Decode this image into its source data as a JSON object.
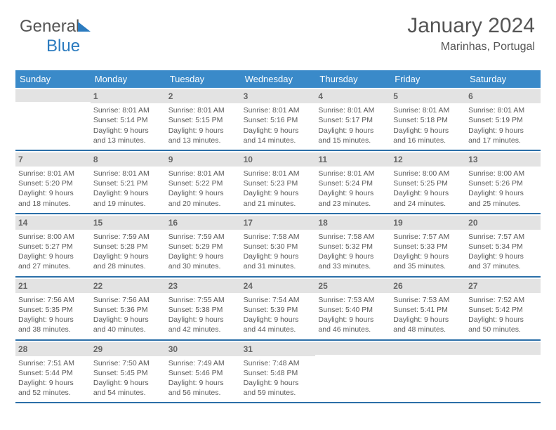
{
  "logo": {
    "part1": "General",
    "part2": "Blue"
  },
  "title": "January 2024",
  "location": "Marinhas, Portugal",
  "colors": {
    "header_bg": "#3a8ac9",
    "header_text": "#ffffff",
    "daynum_bg": "#e3e3e3",
    "week_divider": "#2b6fa8",
    "body_text": "#5a5a5a"
  },
  "weekdays": [
    "Sunday",
    "Monday",
    "Tuesday",
    "Wednesday",
    "Thursday",
    "Friday",
    "Saturday"
  ],
  "weeks": [
    [
      {
        "day": "",
        "lines": []
      },
      {
        "day": "1",
        "lines": [
          "Sunrise: 8:01 AM",
          "Sunset: 5:14 PM",
          "Daylight: 9 hours",
          "and 13 minutes."
        ]
      },
      {
        "day": "2",
        "lines": [
          "Sunrise: 8:01 AM",
          "Sunset: 5:15 PM",
          "Daylight: 9 hours",
          "and 13 minutes."
        ]
      },
      {
        "day": "3",
        "lines": [
          "Sunrise: 8:01 AM",
          "Sunset: 5:16 PM",
          "Daylight: 9 hours",
          "and 14 minutes."
        ]
      },
      {
        "day": "4",
        "lines": [
          "Sunrise: 8:01 AM",
          "Sunset: 5:17 PM",
          "Daylight: 9 hours",
          "and 15 minutes."
        ]
      },
      {
        "day": "5",
        "lines": [
          "Sunrise: 8:01 AM",
          "Sunset: 5:18 PM",
          "Daylight: 9 hours",
          "and 16 minutes."
        ]
      },
      {
        "day": "6",
        "lines": [
          "Sunrise: 8:01 AM",
          "Sunset: 5:19 PM",
          "Daylight: 9 hours",
          "and 17 minutes."
        ]
      }
    ],
    [
      {
        "day": "7",
        "lines": [
          "Sunrise: 8:01 AM",
          "Sunset: 5:20 PM",
          "Daylight: 9 hours",
          "and 18 minutes."
        ]
      },
      {
        "day": "8",
        "lines": [
          "Sunrise: 8:01 AM",
          "Sunset: 5:21 PM",
          "Daylight: 9 hours",
          "and 19 minutes."
        ]
      },
      {
        "day": "9",
        "lines": [
          "Sunrise: 8:01 AM",
          "Sunset: 5:22 PM",
          "Daylight: 9 hours",
          "and 20 minutes."
        ]
      },
      {
        "day": "10",
        "lines": [
          "Sunrise: 8:01 AM",
          "Sunset: 5:23 PM",
          "Daylight: 9 hours",
          "and 21 minutes."
        ]
      },
      {
        "day": "11",
        "lines": [
          "Sunrise: 8:01 AM",
          "Sunset: 5:24 PM",
          "Daylight: 9 hours",
          "and 23 minutes."
        ]
      },
      {
        "day": "12",
        "lines": [
          "Sunrise: 8:00 AM",
          "Sunset: 5:25 PM",
          "Daylight: 9 hours",
          "and 24 minutes."
        ]
      },
      {
        "day": "13",
        "lines": [
          "Sunrise: 8:00 AM",
          "Sunset: 5:26 PM",
          "Daylight: 9 hours",
          "and 25 minutes."
        ]
      }
    ],
    [
      {
        "day": "14",
        "lines": [
          "Sunrise: 8:00 AM",
          "Sunset: 5:27 PM",
          "Daylight: 9 hours",
          "and 27 minutes."
        ]
      },
      {
        "day": "15",
        "lines": [
          "Sunrise: 7:59 AM",
          "Sunset: 5:28 PM",
          "Daylight: 9 hours",
          "and 28 minutes."
        ]
      },
      {
        "day": "16",
        "lines": [
          "Sunrise: 7:59 AM",
          "Sunset: 5:29 PM",
          "Daylight: 9 hours",
          "and 30 minutes."
        ]
      },
      {
        "day": "17",
        "lines": [
          "Sunrise: 7:58 AM",
          "Sunset: 5:30 PM",
          "Daylight: 9 hours",
          "and 31 minutes."
        ]
      },
      {
        "day": "18",
        "lines": [
          "Sunrise: 7:58 AM",
          "Sunset: 5:32 PM",
          "Daylight: 9 hours",
          "and 33 minutes."
        ]
      },
      {
        "day": "19",
        "lines": [
          "Sunrise: 7:57 AM",
          "Sunset: 5:33 PM",
          "Daylight: 9 hours",
          "and 35 minutes."
        ]
      },
      {
        "day": "20",
        "lines": [
          "Sunrise: 7:57 AM",
          "Sunset: 5:34 PM",
          "Daylight: 9 hours",
          "and 37 minutes."
        ]
      }
    ],
    [
      {
        "day": "21",
        "lines": [
          "Sunrise: 7:56 AM",
          "Sunset: 5:35 PM",
          "Daylight: 9 hours",
          "and 38 minutes."
        ]
      },
      {
        "day": "22",
        "lines": [
          "Sunrise: 7:56 AM",
          "Sunset: 5:36 PM",
          "Daylight: 9 hours",
          "and 40 minutes."
        ]
      },
      {
        "day": "23",
        "lines": [
          "Sunrise: 7:55 AM",
          "Sunset: 5:38 PM",
          "Daylight: 9 hours",
          "and 42 minutes."
        ]
      },
      {
        "day": "24",
        "lines": [
          "Sunrise: 7:54 AM",
          "Sunset: 5:39 PM",
          "Daylight: 9 hours",
          "and 44 minutes."
        ]
      },
      {
        "day": "25",
        "lines": [
          "Sunrise: 7:53 AM",
          "Sunset: 5:40 PM",
          "Daylight: 9 hours",
          "and 46 minutes."
        ]
      },
      {
        "day": "26",
        "lines": [
          "Sunrise: 7:53 AM",
          "Sunset: 5:41 PM",
          "Daylight: 9 hours",
          "and 48 minutes."
        ]
      },
      {
        "day": "27",
        "lines": [
          "Sunrise: 7:52 AM",
          "Sunset: 5:42 PM",
          "Daylight: 9 hours",
          "and 50 minutes."
        ]
      }
    ],
    [
      {
        "day": "28",
        "lines": [
          "Sunrise: 7:51 AM",
          "Sunset: 5:44 PM",
          "Daylight: 9 hours",
          "and 52 minutes."
        ]
      },
      {
        "day": "29",
        "lines": [
          "Sunrise: 7:50 AM",
          "Sunset: 5:45 PM",
          "Daylight: 9 hours",
          "and 54 minutes."
        ]
      },
      {
        "day": "30",
        "lines": [
          "Sunrise: 7:49 AM",
          "Sunset: 5:46 PM",
          "Daylight: 9 hours",
          "and 56 minutes."
        ]
      },
      {
        "day": "31",
        "lines": [
          "Sunrise: 7:48 AM",
          "Sunset: 5:48 PM",
          "Daylight: 9 hours",
          "and 59 minutes."
        ]
      },
      {
        "day": "",
        "lines": []
      },
      {
        "day": "",
        "lines": []
      },
      {
        "day": "",
        "lines": []
      }
    ]
  ]
}
